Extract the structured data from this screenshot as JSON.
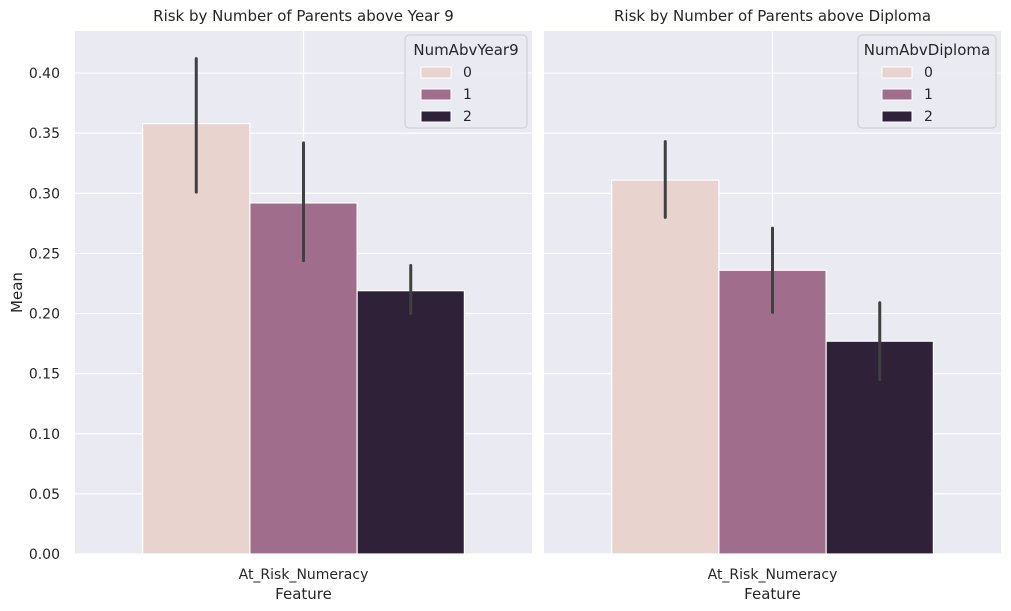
{
  "chart_data": [
    {
      "type": "bar",
      "title": "Risk by Number of Parents above Year 9",
      "xlabel": "Feature",
      "ylabel": "Mean",
      "categories": [
        "At_Risk_Numeracy"
      ],
      "ylim": [
        0,
        0.435
      ],
      "yticks": [
        0.0,
        0.05,
        0.1,
        0.15,
        0.2,
        0.25,
        0.3,
        0.35,
        0.4
      ],
      "ytick_labels": [
        "0.00",
        "0.05",
        "0.10",
        "0.15",
        "0.20",
        "0.25",
        "0.30",
        "0.35",
        "0.40"
      ],
      "legend": {
        "title": "NumAbvYear9",
        "location": "upper right"
      },
      "series": [
        {
          "name": "0",
          "values": [
            0.358
          ],
          "ci": [
            [
              0.301,
              0.412
            ]
          ],
          "color": "#e8d3cf"
        },
        {
          "name": "1",
          "values": [
            0.292
          ],
          "ci": [
            [
              0.244,
              0.342
            ]
          ],
          "color": "#a06e8c"
        },
        {
          "name": "2",
          "values": [
            0.219
          ],
          "ci": [
            [
              0.2,
              0.24
            ]
          ],
          "color": "#2e2138"
        }
      ],
      "grid": true
    },
    {
      "type": "bar",
      "title": "Risk by Number of Parents above Diploma",
      "xlabel": "Feature",
      "ylabel": "",
      "categories": [
        "At_Risk_Numeracy"
      ],
      "ylim": [
        0,
        0.435
      ],
      "yticks": [
        0.0,
        0.05,
        0.1,
        0.15,
        0.2,
        0.25,
        0.3,
        0.35,
        0.4
      ],
      "legend": {
        "title": "NumAbvDiploma",
        "location": "upper right"
      },
      "series": [
        {
          "name": "0",
          "values": [
            0.311
          ],
          "ci": [
            [
              0.28,
              0.343
            ]
          ],
          "color": "#e8d3cf"
        },
        {
          "name": "1",
          "values": [
            0.236
          ],
          "ci": [
            [
              0.201,
              0.271
            ]
          ],
          "color": "#a06e8c"
        },
        {
          "name": "2",
          "values": [
            0.177
          ],
          "ci": [
            [
              0.145,
              0.209
            ]
          ],
          "color": "#2e2138"
        }
      ],
      "grid": true
    }
  ],
  "style": {
    "plot_background": "#eaeaf2",
    "grid_color": "#ffffff",
    "errorbar_color": "#404040"
  }
}
